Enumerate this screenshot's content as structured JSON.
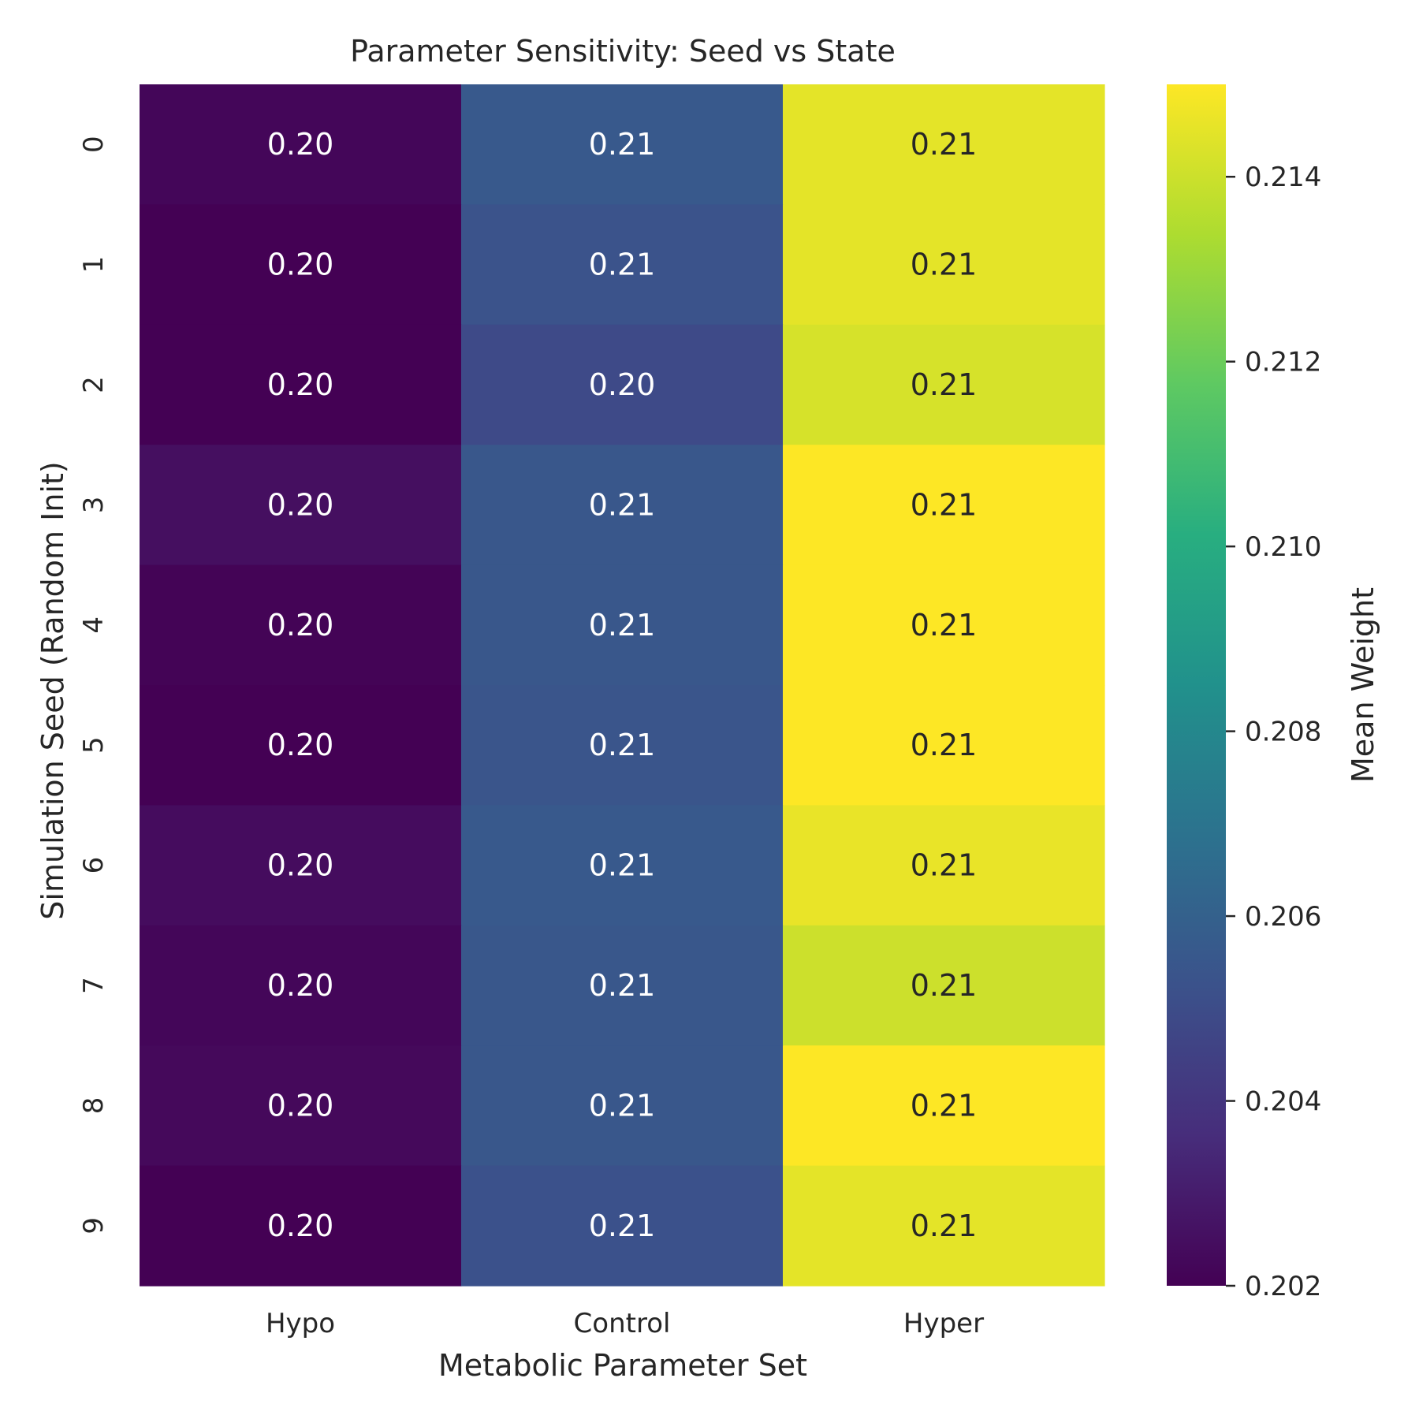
{
  "chart_data": {
    "type": "heatmap",
    "title": "Parameter Sensitivity: Seed vs State",
    "xlabel": "Metabolic Parameter Set",
    "ylabel": "Simulation Seed (Random Init)",
    "x_categories": [
      "Hypo",
      "Control",
      "Hyper"
    ],
    "y_categories": [
      "0",
      "1",
      "2",
      "3",
      "4",
      "5",
      "6",
      "7",
      "8",
      "9"
    ],
    "values": [
      [
        0.2022,
        0.2056,
        0.2145
      ],
      [
        0.202,
        0.2053,
        0.2145
      ],
      [
        0.202,
        0.2049,
        0.2142
      ],
      [
        0.2025,
        0.2055,
        0.215
      ],
      [
        0.2021,
        0.2055,
        0.215
      ],
      [
        0.202,
        0.2054,
        0.215
      ],
      [
        0.2024,
        0.2056,
        0.2146
      ],
      [
        0.2022,
        0.2055,
        0.214
      ],
      [
        0.2023,
        0.2055,
        0.215
      ],
      [
        0.202,
        0.2052,
        0.2145
      ]
    ],
    "annotations": [
      [
        "0.20",
        "0.21",
        "0.21"
      ],
      [
        "0.20",
        "0.21",
        "0.21"
      ],
      [
        "0.20",
        "0.20",
        "0.21"
      ],
      [
        "0.20",
        "0.21",
        "0.21"
      ],
      [
        "0.20",
        "0.21",
        "0.21"
      ],
      [
        "0.20",
        "0.21",
        "0.21"
      ],
      [
        "0.20",
        "0.21",
        "0.21"
      ],
      [
        "0.20",
        "0.21",
        "0.21"
      ],
      [
        "0.20",
        "0.21",
        "0.21"
      ],
      [
        "0.20",
        "0.21",
        "0.21"
      ]
    ],
    "colormap": "viridis",
    "colorbar": {
      "label": "Mean Weight",
      "vmin": 0.202,
      "vmax": 0.215,
      "ticks": [
        "0.202",
        "0.204",
        "0.206",
        "0.208",
        "0.210",
        "0.212",
        "0.214"
      ]
    },
    "annotation_colors": {
      "dark_cell": "#ffffff",
      "light_cell": "#262626"
    },
    "grid": false
  }
}
